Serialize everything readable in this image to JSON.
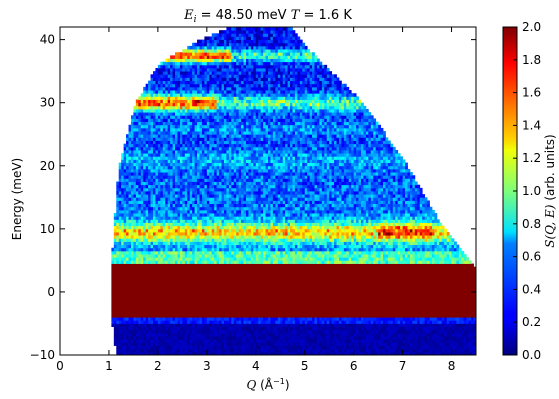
{
  "chart_data": {
    "type": "heatmap",
    "title": {
      "ei_symbol": "E",
      "ei_subscript": "i",
      "ei_text": " = 48.50 meV ",
      "t_symbol": "T",
      "t_text": " = 1.6 K"
    },
    "xlabel": {
      "symbol": "Q",
      "units": " (Å",
      "exponent": "−1",
      "close": ")"
    },
    "ylabel": "Energy (meV)",
    "colorbar_label": {
      "symbol": "S(Q, E)",
      "units": " (arb. units)"
    },
    "xlim": [
      0,
      8.5
    ],
    "ylim": [
      -10,
      42
    ],
    "clim": [
      0.0,
      2.0
    ],
    "colormap": "jet",
    "xticks": [
      "0",
      "1",
      "2",
      "3",
      "4",
      "5",
      "6",
      "7",
      "8"
    ],
    "yticks": [
      "−10",
      "0",
      "10",
      "20",
      "30",
      "40"
    ],
    "cticks": [
      "0.0",
      "0.2",
      "0.4",
      "0.6",
      "0.8",
      "1.0",
      "1.2",
      "1.4",
      "1.6",
      "1.8",
      "2.0"
    ],
    "coverage": {
      "q_min": 1.05,
      "kinematic_lower_q_at_E": [
        [
          -10,
          1.15
        ],
        [
          -4,
          1.05
        ],
        [
          4,
          1.05
        ],
        [
          10,
          1.1
        ],
        [
          20,
          1.2
        ],
        [
          30,
          1.55
        ],
        [
          36,
          2.0
        ],
        [
          40,
          2.85
        ],
        [
          42,
          3.5
        ]
      ],
      "kinematic_upper_q_at_E": [
        [
          -10,
          8.5
        ],
        [
          4,
          8.5
        ],
        [
          10,
          7.85
        ],
        [
          20,
          7.1
        ],
        [
          30,
          6.2
        ],
        [
          36,
          5.4
        ],
        [
          40,
          4.9
        ],
        [
          42,
          4.7
        ]
      ]
    },
    "features": [
      {
        "name": "elastic line",
        "E_range": [
          -4,
          4.5
        ],
        "value": 2.0
      },
      {
        "name": "band ~10 meV",
        "E_center": 9.5,
        "value": 1.5
      },
      {
        "name": "band ~30 meV",
        "E_center": 30,
        "value": 1.6
      },
      {
        "name": "band ~37 meV",
        "E_center": 37,
        "value": 1.9
      }
    ]
  }
}
